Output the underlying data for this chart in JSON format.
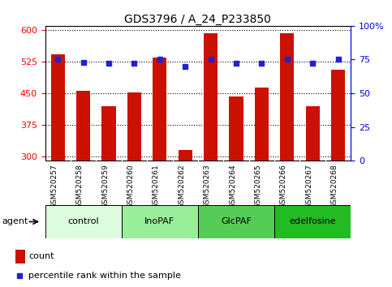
{
  "title": "GDS3796 / A_24_P233850",
  "samples": [
    "GSM520257",
    "GSM520258",
    "GSM520259",
    "GSM520260",
    "GSM520261",
    "GSM520262",
    "GSM520263",
    "GSM520264",
    "GSM520265",
    "GSM520266",
    "GSM520267",
    "GSM520268"
  ],
  "counts": [
    542,
    455,
    420,
    452,
    535,
    315,
    592,
    443,
    463,
    592,
    420,
    505
  ],
  "percentiles": [
    75,
    73,
    72,
    72,
    75,
    70,
    75,
    72,
    72,
    75,
    72,
    75
  ],
  "ylim_left": [
    290,
    610
  ],
  "ylim_right": [
    0,
    100
  ],
  "yticks_left": [
    300,
    375,
    450,
    525,
    600
  ],
  "yticks_right": [
    0,
    25,
    50,
    75,
    100
  ],
  "ytick_labels_right": [
    "0",
    "25",
    "50",
    "75",
    "100%"
  ],
  "bar_color": "#cc1100",
  "dot_color": "#2222cc",
  "groups": [
    {
      "label": "control",
      "start": 0,
      "end": 3,
      "color": "#ddfcdd"
    },
    {
      "label": "InoPAF",
      "start": 3,
      "end": 6,
      "color": "#99ee99"
    },
    {
      "label": "GlcPAF",
      "start": 6,
      "end": 9,
      "color": "#55cc55"
    },
    {
      "label": "edelfosine",
      "start": 9,
      "end": 12,
      "color": "#22bb22"
    }
  ],
  "agent_label": "agent",
  "legend_count_label": "count",
  "legend_pct_label": "percentile rank within the sample",
  "bar_width": 0.55,
  "background_color": "#ffffff",
  "tick_label_area_color": "#cccccc",
  "title_fontsize": 10,
  "axis_fontsize": 8,
  "sample_fontsize": 6.5
}
